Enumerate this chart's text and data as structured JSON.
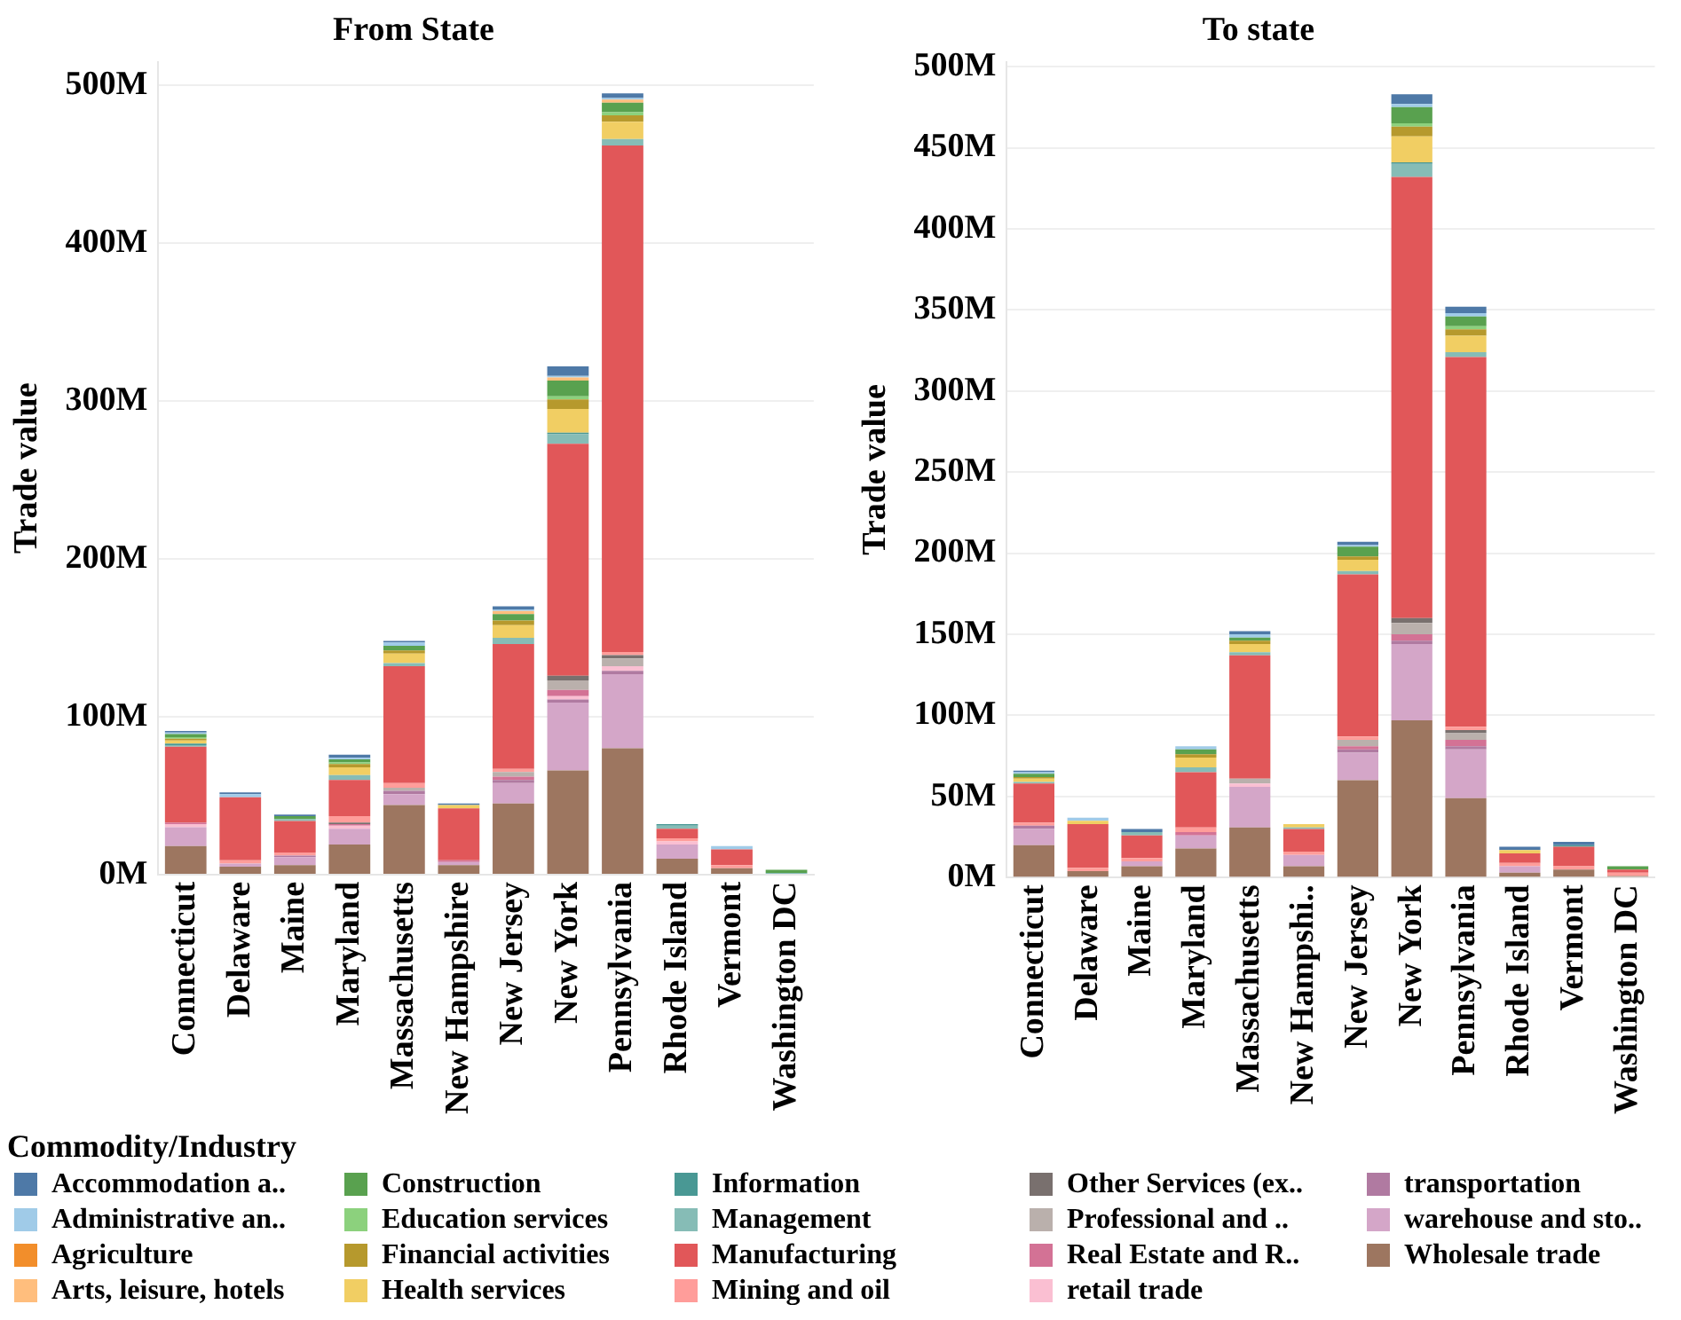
{
  "chart_data": [
    {
      "type": "bar",
      "title": "From State",
      "ylabel": "Trade value",
      "stacked": true,
      "grid": "y",
      "legend": "bottom",
      "legend_title": "Commodity/Industry",
      "categories": [
        "Connecticut",
        "Delaware",
        "Maine",
        "Maryland",
        "Massachusetts",
        "New Hampshire",
        "New Jersey",
        "New York",
        "Pennsylvania",
        "Rhode Island",
        "Vermont",
        "Washington DC"
      ],
      "ylim": [
        0,
        515
      ],
      "yticks": [
        {
          "value": 0,
          "label": "0M"
        },
        {
          "value": 100,
          "label": "100M"
        },
        {
          "value": 200,
          "label": "200M"
        },
        {
          "value": 300,
          "label": "300M"
        },
        {
          "value": 400,
          "label": "400M"
        },
        {
          "value": 500,
          "label": "500M"
        }
      ],
      "series": [
        {
          "name": "Wholesale trade",
          "color": "#9d7660",
          "values": [
            18,
            5,
            6,
            19,
            44,
            6,
            45,
            66,
            80,
            10,
            4,
            0
          ]
        },
        {
          "name": "warehouse and sto..",
          "color": "#d4a6c8",
          "values": [
            12,
            2,
            5,
            10,
            7,
            2,
            13,
            43,
            47,
            9,
            0,
            0
          ]
        },
        {
          "name": "transportation",
          "color": "#b07aa1",
          "values": [
            0,
            0,
            1,
            0,
            2,
            0,
            2,
            2,
            2,
            0,
            0,
            0
          ]
        },
        {
          "name": "retail trade",
          "color": "#fabfd2",
          "values": [
            2,
            0,
            0,
            2,
            0,
            0,
            0,
            2,
            3,
            2,
            0,
            0
          ]
        },
        {
          "name": "Real Estate and R..",
          "color": "#d37295",
          "values": [
            1,
            0,
            0,
            1,
            0,
            1,
            2,
            4,
            0,
            0,
            0,
            0
          ]
        },
        {
          "name": "Professional and ..",
          "color": "#bab0ac",
          "values": [
            0,
            0,
            0,
            0,
            2,
            0,
            3,
            6,
            5,
            0,
            0,
            0
          ]
        },
        {
          "name": "Other Services (ex..",
          "color": "#79706e",
          "values": [
            0,
            0,
            0,
            1,
            0,
            0,
            0,
            3,
            2,
            0,
            0,
            0
          ]
        },
        {
          "name": "Mining and oil",
          "color": "#ff9d9a",
          "values": [
            0,
            2,
            2,
            4,
            3,
            0,
            2,
            0,
            2,
            2,
            2,
            0
          ]
        },
        {
          "name": "Manufacturing",
          "color": "#e15759",
          "values": [
            48,
            40,
            20,
            23,
            74,
            33,
            79,
            147,
            321,
            6,
            10,
            0
          ]
        },
        {
          "name": "Management",
          "color": "#86bcb6",
          "values": [
            1,
            0,
            1,
            3,
            2,
            0,
            4,
            6,
            4,
            2,
            0,
            1
          ]
        },
        {
          "name": "Information",
          "color": "#499894",
          "values": [
            1,
            0,
            0,
            0,
            0,
            0,
            0,
            1,
            0,
            1,
            0,
            0
          ]
        },
        {
          "name": "Health services",
          "color": "#f1ce63",
          "values": [
            2,
            0,
            0,
            5,
            6,
            2,
            8,
            15,
            11,
            0,
            0,
            0
          ]
        },
        {
          "name": "Financial activities",
          "color": "#b6992d",
          "values": [
            1,
            0,
            0,
            2,
            2,
            0,
            3,
            6,
            4,
            0,
            0,
            0
          ]
        },
        {
          "name": "Education services",
          "color": "#8cd17d",
          "values": [
            1,
            0,
            0,
            1,
            0,
            0,
            0,
            2,
            2,
            0,
            0,
            0
          ]
        },
        {
          "name": "Construction",
          "color": "#59a14f",
          "values": [
            2,
            0,
            2,
            2,
            3,
            0,
            4,
            10,
            6,
            0,
            0,
            2
          ]
        },
        {
          "name": "Arts, leisure, hotels",
          "color": "#ffbe7d",
          "values": [
            0,
            0,
            0,
            0,
            0,
            0,
            2,
            2,
            2,
            0,
            0,
            0
          ]
        },
        {
          "name": "Agriculture",
          "color": "#f28e2b",
          "values": [
            0,
            0,
            0,
            0,
            0,
            0,
            0,
            0,
            0,
            0,
            0,
            0
          ]
        },
        {
          "name": "Administrative an..",
          "color": "#a0cbe8",
          "values": [
            1,
            2,
            0,
            1,
            2,
            0,
            1,
            1,
            1,
            0,
            2,
            0
          ]
        },
        {
          "name": "Accommodation a..",
          "color": "#4e79a7",
          "values": [
            1,
            1,
            1,
            2,
            1,
            1,
            2,
            6,
            3,
            0,
            0,
            0
          ]
        }
      ]
    },
    {
      "type": "bar",
      "title": "To state",
      "ylabel": "Trade value",
      "stacked": true,
      "grid": "y",
      "categories": [
        "Connecticut",
        "Delaware",
        "Maine",
        "Maryland",
        "Massachusetts",
        "New Hampshi..",
        "New Jersey",
        "New York",
        "Pennsylvania",
        "Rhode Island",
        "Vermont",
        "Washington DC"
      ],
      "ylim": [
        0,
        503
      ],
      "yticks": [
        {
          "value": 0,
          "label": "0M"
        },
        {
          "value": 50,
          "label": "50M"
        },
        {
          "value": 100,
          "label": "100M"
        },
        {
          "value": 150,
          "label": "150M"
        },
        {
          "value": 200,
          "label": "200M"
        },
        {
          "value": 250,
          "label": "250M"
        },
        {
          "value": 300,
          "label": "300M"
        },
        {
          "value": 350,
          "label": "350M"
        },
        {
          "value": 400,
          "label": "400M"
        },
        {
          "value": 450,
          "label": "450M"
        },
        {
          "value": 500,
          "label": "500M"
        }
      ],
      "series": [
        {
          "color": "#9d7660",
          "values": [
            20,
            4,
            7,
            18,
            31,
            7,
            60,
            97,
            49,
            3,
            5,
            1
          ]
        },
        {
          "color": "#d4a6c8",
          "values": [
            10,
            0,
            3,
            8,
            25,
            7,
            17,
            47,
            30,
            4,
            0,
            0
          ]
        },
        {
          "color": "#b07aa1",
          "values": [
            2,
            0,
            0,
            0,
            0,
            0,
            2,
            2,
            2,
            0,
            0,
            0
          ]
        },
        {
          "color": "#fabfd2",
          "values": [
            0,
            0,
            0,
            0,
            2,
            0,
            0,
            0,
            0,
            0,
            0,
            0
          ]
        },
        {
          "color": "#d37295",
          "values": [
            0,
            0,
            0,
            2,
            0,
            0,
            2,
            4,
            4,
            0,
            0,
            0
          ]
        },
        {
          "color": "#bab0ac",
          "values": [
            0,
            0,
            0,
            0,
            3,
            0,
            4,
            7,
            4,
            0,
            0,
            0
          ]
        },
        {
          "color": "#79706e",
          "values": [
            0,
            0,
            0,
            0,
            0,
            0,
            0,
            3,
            2,
            0,
            0,
            0
          ]
        },
        {
          "color": "#ff9d9a",
          "values": [
            2,
            2,
            2,
            3,
            0,
            2,
            2,
            0,
            2,
            2,
            2,
            2
          ]
        },
        {
          "color": "#e15759",
          "values": [
            24,
            27,
            14,
            34,
            76,
            14,
            100,
            272,
            228,
            6,
            12,
            2
          ]
        },
        {
          "color": "#86bcb6",
          "values": [
            1,
            0,
            2,
            3,
            2,
            1,
            2,
            8,
            3,
            0,
            0,
            0
          ]
        },
        {
          "color": "#499894",
          "values": [
            0,
            0,
            0,
            0,
            0,
            0,
            0,
            1,
            0,
            0,
            1,
            0
          ]
        },
        {
          "color": "#f1ce63",
          "values": [
            2,
            2,
            0,
            6,
            5,
            2,
            7,
            16,
            10,
            2,
            0,
            0
          ]
        },
        {
          "color": "#b6992d",
          "values": [
            1,
            0,
            0,
            2,
            2,
            0,
            2,
            6,
            4,
            0,
            0,
            0
          ]
        },
        {
          "color": "#8cd17d",
          "values": [
            0,
            0,
            0,
            0,
            0,
            0,
            0,
            2,
            2,
            0,
            0,
            0
          ]
        },
        {
          "color": "#59a14f",
          "values": [
            2,
            0,
            0,
            3,
            2,
            0,
            6,
            10,
            6,
            0,
            0,
            2
          ]
        },
        {
          "color": "#ffbe7d",
          "values": [
            0,
            0,
            0,
            0,
            0,
            0,
            0,
            0,
            0,
            0,
            0,
            0
          ]
        },
        {
          "color": "#f28e2b",
          "values": [
            0,
            0,
            0,
            0,
            0,
            0,
            0,
            0,
            0,
            0,
            0,
            0
          ]
        },
        {
          "color": "#a0cbe8",
          "values": [
            1,
            2,
            0,
            2,
            2,
            0,
            1,
            2,
            2,
            0,
            0,
            0
          ]
        },
        {
          "color": "#4e79a7",
          "values": [
            1,
            0,
            2,
            0,
            2,
            0,
            2,
            6,
            4,
            2,
            2,
            0
          ]
        }
      ]
    }
  ]
}
